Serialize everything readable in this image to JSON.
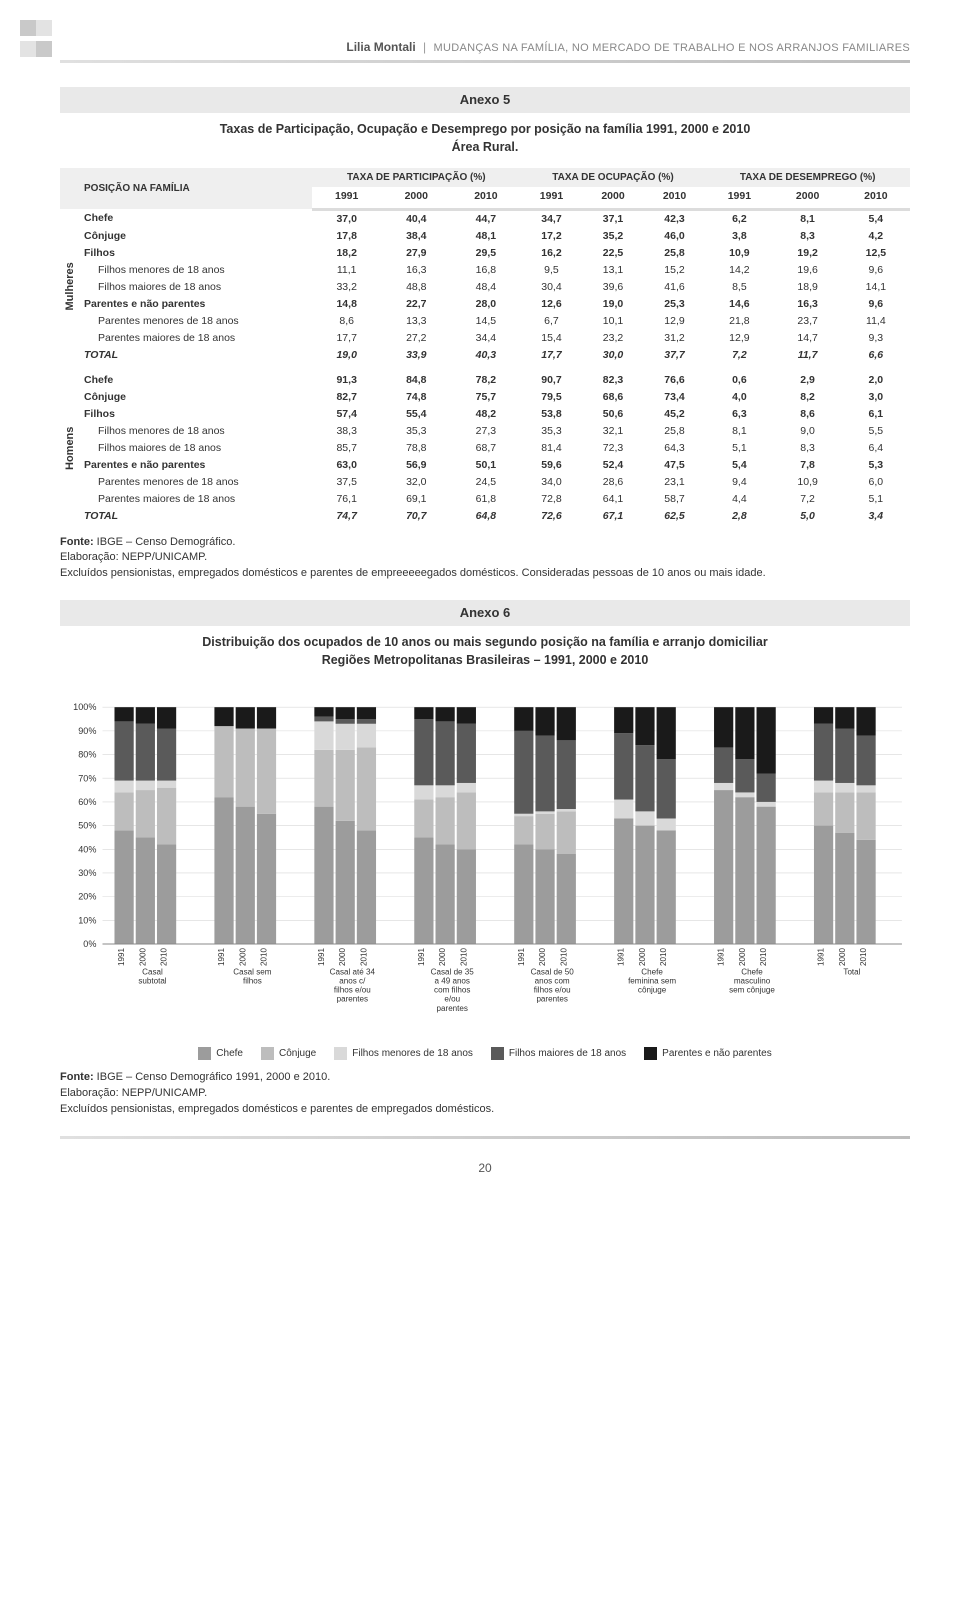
{
  "header": {
    "author": "Lilia Montali",
    "title": "MUDANÇAS NA FAMÍLIA, NO MERCADO DE TRABALHO E NOS ARRANJOS FAMILIARES"
  },
  "corner_colors": [
    "#c9c9c9",
    "#e3e3e3",
    "#e3e3e3",
    "#c9c9c9"
  ],
  "anexo5": {
    "title": "Anexo 5",
    "subtitle": "Taxas de Participação, Ocupação e Desemprego por posição na família 1991, 2000 e 2010\nÁrea Rural.",
    "col_groups": [
      "POSIÇÃO NA FAMÍLIA",
      "TAXA DE PARTICIPAÇÃO (%)",
      "TAXA DE OCUPAÇÃO (%)",
      "TAXA DE DESEMPREGO (%)"
    ],
    "years": [
      "1991",
      "2000",
      "2010",
      "1991",
      "2000",
      "2010",
      "1991",
      "2000",
      "2010"
    ],
    "side_labels": [
      "Mulheres",
      "Homens"
    ],
    "sections": [
      {
        "rows": [
          {
            "label": "Chefe",
            "style": "bold",
            "vals": [
              "37,0",
              "40,4",
              "44,7",
              "34,7",
              "37,1",
              "42,3",
              "6,2",
              "8,1",
              "5,4"
            ]
          },
          {
            "label": "Cônjuge",
            "style": "bold",
            "vals": [
              "17,8",
              "38,4",
              "48,1",
              "17,2",
              "35,2",
              "46,0",
              "3,8",
              "8,3",
              "4,2"
            ]
          },
          {
            "label": "Filhos",
            "style": "bold",
            "vals": [
              "18,2",
              "27,9",
              "29,5",
              "16,2",
              "22,5",
              "25,8",
              "10,9",
              "19,2",
              "12,5"
            ]
          },
          {
            "label": "Filhos menores de 18 anos",
            "style": "indent",
            "vals": [
              "11,1",
              "16,3",
              "16,8",
              "9,5",
              "13,1",
              "15,2",
              "14,2",
              "19,6",
              "9,6"
            ]
          },
          {
            "label": "Filhos maiores de 18 anos",
            "style": "indent",
            "vals": [
              "33,2",
              "48,8",
              "48,4",
              "30,4",
              "39,6",
              "41,6",
              "8,5",
              "18,9",
              "14,1"
            ]
          },
          {
            "label": "Parentes e não parentes",
            "style": "bold",
            "vals": [
              "14,8",
              "22,7",
              "28,0",
              "12,6",
              "19,0",
              "25,3",
              "14,6",
              "16,3",
              "9,6"
            ]
          },
          {
            "label": "Parentes menores de 18 anos",
            "style": "indent",
            "vals": [
              "8,6",
              "13,3",
              "14,5",
              "6,7",
              "10,1",
              "12,9",
              "21,8",
              "23,7",
              "11,4"
            ]
          },
          {
            "label": "Parentes maiores de 18 anos",
            "style": "indent",
            "vals": [
              "17,7",
              "27,2",
              "34,4",
              "15,4",
              "23,2",
              "31,2",
              "12,9",
              "14,7",
              "9,3"
            ]
          },
          {
            "label": "TOTAL",
            "style": "total",
            "vals": [
              "19,0",
              "33,9",
              "40,3",
              "17,7",
              "30,0",
              "37,7",
              "7,2",
              "11,7",
              "6,6"
            ]
          }
        ]
      },
      {
        "rows": [
          {
            "label": "Chefe",
            "style": "bold",
            "vals": [
              "91,3",
              "84,8",
              "78,2",
              "90,7",
              "82,3",
              "76,6",
              "0,6",
              "2,9",
              "2,0"
            ]
          },
          {
            "label": "Cônjuge",
            "style": "bold",
            "vals": [
              "82,7",
              "74,8",
              "75,7",
              "79,5",
              "68,6",
              "73,4",
              "4,0",
              "8,2",
              "3,0"
            ]
          },
          {
            "label": "Filhos",
            "style": "bold",
            "vals": [
              "57,4",
              "55,4",
              "48,2",
              "53,8",
              "50,6",
              "45,2",
              "6,3",
              "8,6",
              "6,1"
            ]
          },
          {
            "label": "Filhos menores de 18 anos",
            "style": "indent",
            "vals": [
              "38,3",
              "35,3",
              "27,3",
              "35,3",
              "32,1",
              "25,8",
              "8,1",
              "9,0",
              "5,5"
            ]
          },
          {
            "label": "Filhos maiores de 18 anos",
            "style": "indent",
            "vals": [
              "85,7",
              "78,8",
              "68,7",
              "81,4",
              "72,3",
              "64,3",
              "5,1",
              "8,3",
              "6,4"
            ]
          },
          {
            "label": "Parentes e não parentes",
            "style": "bold",
            "vals": [
              "63,0",
              "56,9",
              "50,1",
              "59,6",
              "52,4",
              "47,5",
              "5,4",
              "7,8",
              "5,3"
            ]
          },
          {
            "label": "Parentes menores de 18 anos",
            "style": "indent",
            "vals": [
              "37,5",
              "32,0",
              "24,5",
              "34,0",
              "28,6",
              "23,1",
              "9,4",
              "10,9",
              "6,0"
            ]
          },
          {
            "label": "Parentes maiores de 18 anos",
            "style": "indent",
            "vals": [
              "76,1",
              "69,1",
              "61,8",
              "72,8",
              "64,1",
              "58,7",
              "4,4",
              "7,2",
              "5,1"
            ]
          },
          {
            "label": "TOTAL",
            "style": "total",
            "vals": [
              "74,7",
              "70,7",
              "64,8",
              "72,6",
              "67,1",
              "62,5",
              "2,8",
              "5,0",
              "3,4"
            ]
          }
        ]
      }
    ],
    "fonte": "IBGE – Censo Demográfico.",
    "elab": "Elaboração: NEPP/UNICAMP.",
    "note": "Excluídos pensionistas, empregados domésticos e parentes de empreeeeegados domésticos. Consideradas pessoas de 10 anos ou mais idade."
  },
  "anexo6": {
    "title": "Anexo 6",
    "subtitle": "Distribuição dos ocupados de 10 anos ou mais segundo posição na família e arranjo domiciliar\nRegiões Metropolitanas Brasileiras – 1991, 2000 e 2010",
    "y_ticks": [
      "0%",
      "10%",
      "20%",
      "30%",
      "40%",
      "50%",
      "60%",
      "70%",
      "80%",
      "90%",
      "100%"
    ],
    "x_years": [
      "1991",
      "2000",
      "2010"
    ],
    "x_groups": [
      "Casal subtotal",
      "Casal sem filhos",
      "Casal até 34 anos c/ filhos e/ou parentes",
      "Casal de 35 a 49 anos com filhos e/ou parentes",
      "Casal de 50 anos com filhos e/ou parentes",
      "Chefe feminina sem cônjuge",
      "Chefe masculino sem cônjuge",
      "Total"
    ],
    "series": [
      {
        "name": "Chefe",
        "color": "#9c9c9c"
      },
      {
        "name": "Cônjuge",
        "color": "#bdbdbd"
      },
      {
        "name": "Filhos menores de 18 anos",
        "color": "#d9d9d9"
      },
      {
        "name": "Filhos maiores de 18 anos",
        "color": "#5a5a5a"
      },
      {
        "name": "Parentes e não parentes",
        "color": "#1a1a1a"
      }
    ],
    "data": [
      [
        [
          48,
          16,
          5,
          25,
          6
        ],
        [
          45,
          20,
          4,
          24,
          7
        ],
        [
          42,
          24,
          3,
          22,
          9
        ]
      ],
      [
        [
          62,
          30,
          0,
          0,
          8
        ],
        [
          58,
          33,
          0,
          0,
          9
        ],
        [
          55,
          36,
          0,
          0,
          9
        ]
      ],
      [
        [
          58,
          24,
          12,
          2,
          4
        ],
        [
          52,
          30,
          11,
          2,
          5
        ],
        [
          48,
          35,
          10,
          2,
          5
        ]
      ],
      [
        [
          45,
          16,
          6,
          28,
          5
        ],
        [
          42,
          20,
          5,
          27,
          6
        ],
        [
          40,
          24,
          4,
          25,
          7
        ]
      ],
      [
        [
          42,
          12,
          1,
          35,
          10
        ],
        [
          40,
          15,
          1,
          32,
          12
        ],
        [
          38,
          18,
          1,
          29,
          14
        ]
      ],
      [
        [
          53,
          0,
          8,
          28,
          11
        ],
        [
          50,
          0,
          6,
          28,
          16
        ],
        [
          48,
          0,
          5,
          25,
          22
        ]
      ],
      [
        [
          65,
          0,
          3,
          15,
          17
        ],
        [
          62,
          0,
          2,
          14,
          22
        ],
        [
          58,
          0,
          2,
          12,
          28
        ]
      ],
      [
        [
          50,
          14,
          5,
          24,
          7
        ],
        [
          47,
          17,
          4,
          23,
          9
        ],
        [
          44,
          20,
          3,
          21,
          12
        ]
      ]
    ],
    "fonte": "IBGE – Censo Demográfico 1991, 2000 e 2010.",
    "elab": "Elaboração: NEPP/UNICAMP.",
    "note": "Excluídos pensionistas, empregados domésticos e parentes de empregados domésticos."
  },
  "page_number": "20"
}
